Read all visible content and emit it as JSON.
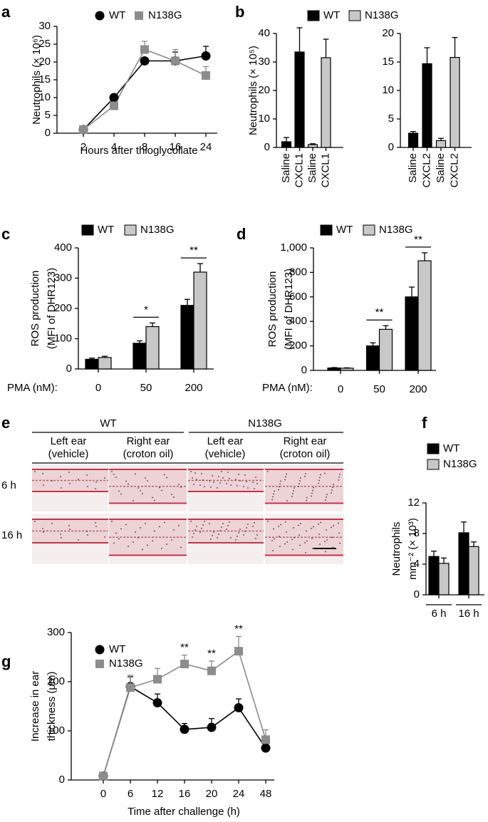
{
  "chart_data": [
    {
      "type": "line",
      "panel": "a",
      "ylabel": "Neutrophils (× 10⁶)",
      "xlabel": "Hours after thioglycollate",
      "categories": [
        "2",
        "4",
        "8",
        "16",
        "24"
      ],
      "ylim": [
        0,
        30
      ],
      "yticks": [
        0,
        5,
        10,
        15,
        20,
        25,
        30
      ],
      "series": [
        {
          "name": "WT",
          "color": "#000000",
          "marker": "circle",
          "values": [
            1,
            10,
            20.3,
            20.3,
            21.7
          ],
          "errors": [
            0.3,
            0.5,
            0.5,
            2.5,
            2.7
          ]
        },
        {
          "name": "N138G",
          "color": "#8c8c8c",
          "marker": "square",
          "values": [
            1,
            7.7,
            23.5,
            20.3,
            16.2
          ],
          "errors": [
            0.3,
            0.5,
            2.3,
            3.2,
            2.5
          ]
        }
      ]
    },
    {
      "type": "bar",
      "panel": "b",
      "ylabel": "Neutrophils (× 10⁵)",
      "legend": [
        {
          "name": "WT",
          "color": "#000000"
        },
        {
          "name": "N138G",
          "color": "#c8c8c8"
        }
      ],
      "categories": [
        "Saline",
        "CXCL1",
        "Saline",
        "CXCL1"
      ],
      "values": [
        2,
        33.5,
        1,
        31.5
      ],
      "errors": [
        1.5,
        8.5,
        0.3,
        6.5
      ],
      "colors": [
        "#000000",
        "#000000",
        "#c8c8c8",
        "#c8c8c8"
      ],
      "ylim": [
        0,
        40
      ],
      "yticks": [
        0,
        10,
        20,
        30,
        40
      ]
    },
    {
      "type": "bar",
      "categories": [
        "Saline",
        "CXCL2",
        "Saline",
        "CXCL2"
      ],
      "values": [
        2.5,
        14.7,
        1.2,
        15.8
      ],
      "errors": [
        0.3,
        2.8,
        0.4,
        3.5
      ],
      "colors": [
        "#000000",
        "#000000",
        "#c8c8c8",
        "#c8c8c8"
      ],
      "ylim": [
        0,
        20
      ],
      "yticks": [
        0,
        5,
        10,
        15,
        20
      ]
    },
    {
      "type": "bar",
      "panel": "c",
      "ylabel": [
        "ROS production",
        "(MFI of DHR123)"
      ],
      "x_label": "PMA (nM):",
      "categories": [
        "0",
        "50",
        "200"
      ],
      "ylim": [
        0,
        400
      ],
      "yticks": [
        0,
        100,
        200,
        300,
        400
      ],
      "series": [
        {
          "name": "WT",
          "color": "#000000",
          "values": [
            32,
            85,
            210
          ],
          "errors": [
            4,
            8,
            20
          ]
        },
        {
          "name": "N138G",
          "color": "#c8c8c8",
          "values": [
            38,
            140,
            320
          ],
          "errors": [
            4,
            12,
            28
          ]
        }
      ],
      "significance": [
        null,
        "*",
        "**"
      ]
    },
    {
      "type": "bar",
      "panel": "d",
      "ylabel": [
        "ROS production",
        "(MFI of DHR123)"
      ],
      "x_label": "PMA (nM):",
      "categories": [
        "0",
        "50",
        "200"
      ],
      "ylim": [
        0,
        1000
      ],
      "yticks": [
        0,
        200,
        400,
        600,
        800,
        {
          "value": 1000,
          "label": "1,000"
        }
      ],
      "series": [
        {
          "name": "WT",
          "color": "#000000",
          "values": [
            20,
            200,
            600
          ],
          "errors": [
            3,
            25,
            80
          ]
        },
        {
          "name": "N138G",
          "color": "#c8c8c8",
          "values": [
            18,
            335,
            895
          ],
          "errors": [
            3,
            30,
            65
          ]
        }
      ],
      "significance": [
        null,
        "**",
        "**"
      ]
    },
    {
      "type": "bar",
      "panel": "f",
      "ylabel": [
        "Neutrophils",
        "mm⁻² (× 10³)"
      ],
      "categories": [
        "6 h",
        "16 h"
      ],
      "ylim": [
        0,
        12
      ],
      "yticks": [
        0,
        4,
        8,
        12
      ],
      "series": [
        {
          "name": "WT",
          "color": "#000000",
          "values": [
            5,
            8.1
          ],
          "errors": [
            0.7,
            1.4
          ]
        },
        {
          "name": "N138G",
          "color": "#c8c8c8",
          "values": [
            4.1,
            6.3
          ],
          "errors": [
            0.7,
            0.6
          ]
        }
      ]
    },
    {
      "type": "line",
      "panel": "g",
      "ylabel": [
        "Increase in ear",
        "thickness (μm)"
      ],
      "xlabel": "Time after challenge (h)",
      "categories": [
        "0",
        "6",
        "12",
        "16",
        "20",
        "24",
        "48"
      ],
      "ylim": [
        0,
        300
      ],
      "yticks": [
        0,
        100,
        200,
        300
      ],
      "series": [
        {
          "name": "WT",
          "color": "#000000",
          "marker": "circle",
          "values": [
            8,
            190,
            157,
            103,
            107,
            147,
            65
          ],
          "errors": [
            5,
            20,
            18,
            12,
            18,
            18,
            8
          ]
        },
        {
          "name": "N138G",
          "color": "#8c8c8c",
          "marker": "square",
          "values": [
            8,
            188,
            205,
            236,
            222,
            262,
            82
          ],
          "errors": [
            5,
            25,
            22,
            18,
            20,
            30,
            20
          ]
        }
      ],
      "significance": [
        null,
        null,
        null,
        "**",
        "**",
        "**",
        null
      ]
    }
  ],
  "histology": {
    "panel": "e",
    "groups": [
      "WT",
      "N138G"
    ],
    "columns": [
      [
        "Left ear",
        "(vehicle)"
      ],
      [
        "Right ear",
        "(croton oil)"
      ],
      [
        "Left ear",
        "(vehicle)"
      ],
      [
        "Right ear",
        "(croton oil)"
      ]
    ],
    "rows": [
      "6 h",
      "16 h"
    ]
  }
}
